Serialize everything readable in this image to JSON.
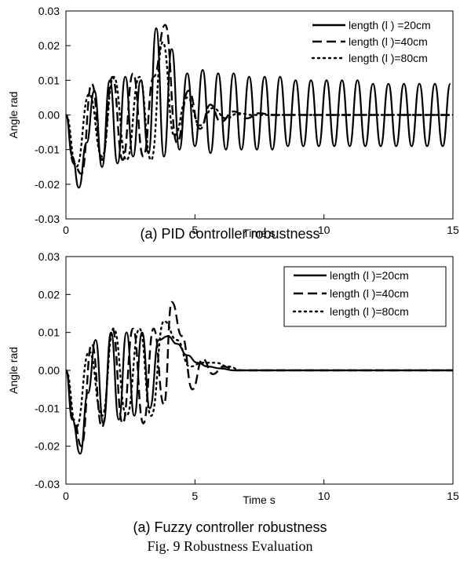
{
  "figure": {
    "caption": "Fig. 9 Robustness Evaluation",
    "panel_captions": [
      "(a) PID controller robustness",
      "(a) Fuzzy controller robustness"
    ]
  },
  "chart_data": [
    {
      "type": "line",
      "xlabel": "Time s",
      "ylabel": "Angle rad",
      "xlim": [
        0,
        15
      ],
      "ylim": [
        -0.03,
        0.03
      ],
      "xticks": [
        "0",
        "5",
        "10",
        "15"
      ],
      "yticks": [
        "0.03",
        "0.02",
        "0.01",
        "0.00",
        "-0.01",
        "-0.02",
        "-0.03"
      ],
      "grid": false,
      "legend_position": "top-right",
      "legend_box": false,
      "series": [
        {
          "name": "length (l ) =20cm",
          "style": "solid",
          "x": [
            0,
            0.25,
            0.5,
            0.8,
            1.1,
            1.4,
            1.7,
            2.0,
            2.3,
            2.6,
            2.9,
            3.2,
            3.5,
            3.8,
            4.1,
            4.4,
            4.7,
            5.0,
            5.3,
            5.6,
            5.9,
            6.2,
            6.5,
            6.8,
            7.1,
            7.4,
            7.7,
            8.0,
            8.3,
            8.6,
            8.9,
            9.2,
            9.5,
            9.8,
            10.1,
            10.4,
            10.7,
            11.0,
            11.3,
            11.6,
            11.9,
            12.2,
            12.5,
            12.8,
            13.1,
            13.4,
            13.7,
            14.0,
            14.3,
            14.6,
            14.9
          ],
          "y": [
            0.0,
            -0.012,
            -0.021,
            -0.008,
            0.007,
            -0.015,
            0.01,
            -0.014,
            0.011,
            -0.012,
            0.01,
            -0.011,
            0.025,
            -0.012,
            0.019,
            -0.01,
            0.012,
            -0.009,
            0.013,
            -0.011,
            0.012,
            -0.01,
            0.012,
            -0.01,
            0.011,
            -0.01,
            0.011,
            -0.01,
            0.011,
            -0.009,
            0.01,
            -0.009,
            0.01,
            -0.009,
            0.01,
            -0.009,
            0.01,
            -0.009,
            0.01,
            -0.009,
            0.009,
            -0.009,
            0.009,
            -0.009,
            0.009,
            -0.009,
            0.009,
            -0.009,
            0.009,
            -0.009,
            0.009
          ]
        },
        {
          "name": "length (l )=40cm",
          "style": "dashed",
          "x": [
            0,
            0.3,
            0.6,
            1.0,
            1.4,
            1.8,
            2.2,
            2.6,
            3.0,
            3.4,
            3.85,
            4.3,
            4.75,
            5.2,
            5.6,
            6.0,
            6.5,
            7.0,
            7.5,
            8.0,
            9.0,
            10.0,
            11.0,
            12.0,
            13.0,
            14.0,
            15.0
          ],
          "y": [
            0.0,
            -0.014,
            -0.017,
            0.009,
            -0.013,
            0.011,
            -0.013,
            0.012,
            -0.012,
            0.011,
            0.026,
            -0.008,
            0.007,
            -0.004,
            0.003,
            -0.002,
            0.001,
            -0.001,
            0.0005,
            0.0,
            0.0,
            0.0,
            0.0,
            0.0,
            0.0,
            0.0,
            0.0
          ]
        },
        {
          "name": "length (l )=80cm",
          "style": "dotted",
          "x": [
            0,
            0.4,
            0.9,
            1.4,
            1.85,
            2.35,
            2.85,
            3.3,
            3.75,
            4.2,
            4.7,
            5.2,
            5.7,
            6.2,
            6.7,
            7.2,
            8.0,
            9.0,
            10.0,
            11.0,
            12.0,
            13.0,
            14.0,
            15.0
          ],
          "y": [
            0.0,
            -0.015,
            0.006,
            -0.012,
            0.011,
            -0.013,
            0.011,
            -0.013,
            0.021,
            -0.006,
            0.005,
            -0.003,
            0.002,
            -0.001,
            0.0005,
            0.0,
            0.0,
            0.0,
            0.0,
            0.0,
            0.0,
            0.0,
            0.0,
            0.0
          ]
        }
      ]
    },
    {
      "type": "line",
      "xlabel": "Time s",
      "ylabel": "Angle rad",
      "xlim": [
        0,
        15
      ],
      "ylim": [
        -0.03,
        0.03
      ],
      "xticks": [
        "0",
        "5",
        "10",
        "15"
      ],
      "yticks": [
        "0.03",
        "0.02",
        "0.01",
        "0.00",
        "-0.01",
        "-0.02",
        "-0.03"
      ],
      "grid": false,
      "legend_position": "top-right",
      "legend_box": true,
      "series": [
        {
          "name": "length (l )=20cm",
          "style": "solid",
          "x": [
            0,
            0.25,
            0.55,
            0.85,
            1.15,
            1.45,
            1.75,
            2.05,
            2.35,
            2.65,
            2.95,
            3.25,
            3.6,
            3.95,
            4.3,
            4.7,
            5.1,
            5.5,
            6.0,
            6.5,
            7.0,
            8.0,
            9.0,
            10.0,
            11.0,
            12.0,
            13.0,
            14.0,
            15.0
          ],
          "y": [
            0.0,
            -0.013,
            -0.022,
            -0.006,
            0.008,
            -0.014,
            0.01,
            -0.013,
            0.01,
            -0.012,
            0.01,
            -0.01,
            0.008,
            0.009,
            0.007,
            0.004,
            0.002,
            0.001,
            0.0005,
            0.0,
            0.0,
            0.0,
            0.0,
            0.0,
            0.0,
            0.0,
            0.0,
            0.0,
            0.0
          ]
        },
        {
          "name": "length (l )=40cm",
          "style": "dashed",
          "x": [
            0,
            0.3,
            0.6,
            1.0,
            1.4,
            1.8,
            2.2,
            2.6,
            3.0,
            3.4,
            3.8,
            4.1,
            4.5,
            4.9,
            5.3,
            5.7,
            6.1,
            6.6,
            7.0,
            8.0,
            9.0,
            10.0,
            11.0,
            12.0,
            13.0,
            14.0,
            15.0
          ],
          "y": [
            0.0,
            -0.013,
            -0.02,
            0.007,
            -0.015,
            0.011,
            -0.014,
            0.011,
            -0.014,
            0.011,
            -0.009,
            0.018,
            0.009,
            -0.005,
            0.003,
            -0.001,
            0.001,
            0.0,
            0.0,
            0.0,
            0.0,
            0.0,
            0.0,
            0.0,
            0.0,
            0.0,
            0.0
          ]
        },
        {
          "name": "length (l )=80cm",
          "style": "dotted",
          "x": [
            0,
            0.4,
            0.9,
            1.4,
            1.85,
            2.35,
            2.85,
            3.3,
            3.8,
            4.3,
            4.8,
            5.3,
            5.8,
            6.3,
            6.8,
            7.3,
            8.0,
            9.0,
            10.0,
            11.0,
            12.0,
            13.0,
            14.0,
            15.0
          ],
          "y": [
            0.0,
            -0.015,
            0.005,
            -0.012,
            0.011,
            -0.012,
            0.011,
            -0.012,
            0.013,
            0.008,
            0.001,
            0.002,
            0.002,
            0.001,
            0.0,
            0.0,
            0.0,
            0.0,
            0.0,
            0.0,
            0.0,
            0.0,
            0.0,
            0.0
          ]
        }
      ]
    }
  ]
}
